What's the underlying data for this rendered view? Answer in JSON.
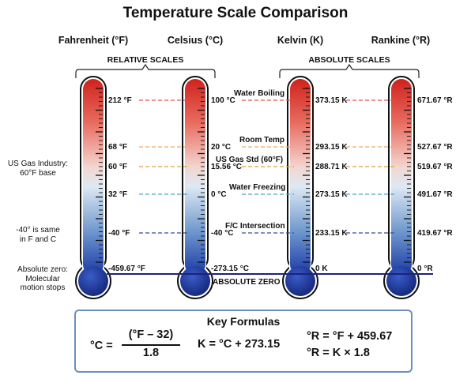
{
  "title": "Temperature Scale Comparison",
  "columns": [
    {
      "key": "f",
      "header": "Fahrenheit (°F)"
    },
    {
      "key": "c",
      "header": "Celsius (°C)"
    },
    {
      "key": "k",
      "header": "Kelvin (K)"
    },
    {
      "key": "r",
      "header": "Rankine (°R)"
    }
  ],
  "groups": {
    "relative": "RELATIVE SCALES",
    "absolute": "ABSOLUTE SCALES"
  },
  "reference_points": [
    {
      "id": "water-boiling",
      "label": "Water Boiling",
      "color": "#d9534f",
      "f": "212 °F",
      "c": "100 °C",
      "k": "373.15 K",
      "r": "671.67 °R"
    },
    {
      "id": "room-temp",
      "label": "Room Temp",
      "color": "#f0a868",
      "f": "68 °F",
      "c": "20 °C",
      "k": "293.15 K",
      "r": "527.67 °R"
    },
    {
      "id": "us-gas-std",
      "label": "US Gas Std (60°F)",
      "color": "#d9a43a",
      "f": "60 °F",
      "c": "15.56 °C",
      "k": "288.71 K",
      "r": "519.67 °R"
    },
    {
      "id": "water-freezing",
      "label": "Water Freezing",
      "color": "#4aa3c8",
      "f": "32 °F",
      "c": "0 °C",
      "k": "273.15 K",
      "r": "491.67 °R"
    },
    {
      "id": "fc-intersection",
      "label": "F/C Intersection",
      "color": "#3a4a9a",
      "f": "-40 °F",
      "c": "-40 °C",
      "k": "233.15 K",
      "r": "419.67 °R"
    },
    {
      "id": "absolute-zero",
      "label": "ABSOLUTE ZERO",
      "color": "#1a237e",
      "f": "-459.67 °F",
      "c": "-273.15 °C",
      "k": "0 K",
      "r": "0 °R"
    }
  ],
  "side_notes": {
    "gas_industry": [
      "US Gas Industry:",
      "60°F base"
    ],
    "same_in_f_c": [
      "-40° is same",
      "in F and C"
    ],
    "absolute_zero": [
      "Absolute zero:",
      "Molecular",
      "motion stops"
    ]
  },
  "formulas": {
    "title": "Key Formulas",
    "celsius_lhs": "°C =",
    "celsius_num": "(°F – 32)",
    "celsius_den": "1.8",
    "kelvin": "K = °C + 273.15",
    "rankine_1": "°R = °F + 459.67",
    "rankine_2": "°R = K × 1.8"
  },
  "colors": {
    "hot": "#d0221c",
    "cold": "#1a3aa6",
    "box_border": "#6a8fc0"
  }
}
